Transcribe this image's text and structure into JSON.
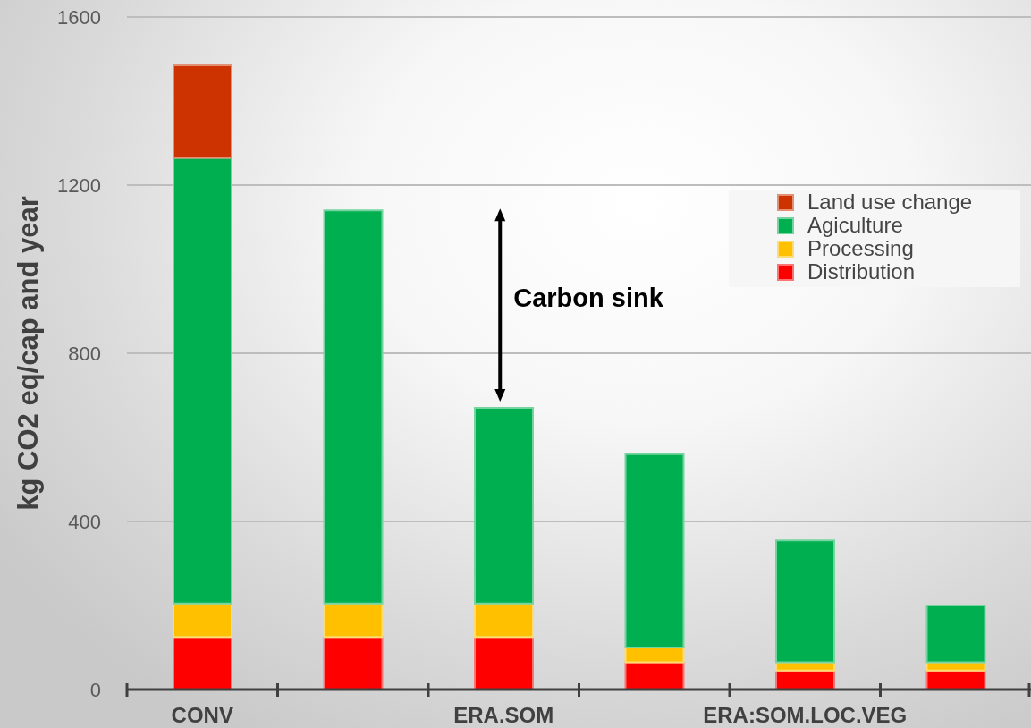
{
  "chart_data": {
    "type": "bar",
    "stacked": true,
    "ylabel": "kg CO2 eq/cap and year",
    "categories": [
      "CONV",
      null,
      "ERA.SOM",
      null,
      "ERA:SOM.LOC.VEG",
      null
    ],
    "series": [
      {
        "name": "Distribution",
        "color": "#ff0000",
        "values": [
          125,
          125,
          125,
          65,
          45,
          45
        ]
      },
      {
        "name": "Processing",
        "color": "#ffc000",
        "values": [
          80,
          80,
          80,
          35,
          20,
          20
        ]
      },
      {
        "name": "Agiculture",
        "color": "#00b050",
        "values": [
          1060,
          935,
          465,
          460,
          290,
          135
        ]
      },
      {
        "name": "Land use change",
        "color": "#cc3300",
        "values": [
          220,
          null,
          null,
          null,
          null,
          null
        ]
      }
    ],
    "ylim": [
      0,
      1600
    ],
    "yticks": [
      0,
      400,
      800,
      1200,
      1600
    ],
    "grid": "y",
    "legend": "top right",
    "annotations": [
      "Carbon sink"
    ]
  }
}
